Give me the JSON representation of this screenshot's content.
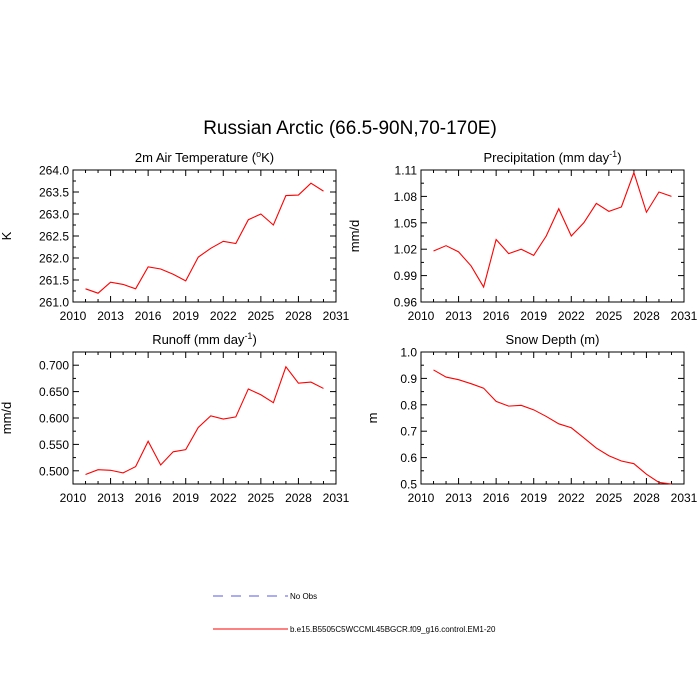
{
  "figure": {
    "title": "Russian Arctic (66.5-90N,70-170E)"
  },
  "chart_data": [
    {
      "type": "line",
      "title_main": "2m Air Temperature (",
      "title_sup": "o",
      "title_tail": "K)",
      "ylabel": "K",
      "xlim": [
        2010,
        2031
      ],
      "ylim": [
        261.0,
        264.0
      ],
      "xticks": [
        2010,
        2013,
        2016,
        2019,
        2022,
        2025,
        2028,
        2031
      ],
      "xticklabels": [
        "2010",
        "2013",
        "2016",
        "2019",
        "2022",
        "2025",
        "2028",
        "2031"
      ],
      "yticks": [
        261.0,
        261.5,
        262.0,
        262.5,
        263.0,
        263.5,
        264.0
      ],
      "yticklabels": [
        "261.0",
        "261.5",
        "262.0",
        "262.5",
        "263.0",
        "263.5",
        "264.0"
      ],
      "series": [
        {
          "name": "b.e15.B5505C5WCCML45BGCR.f09_g16.control.EM1-20",
          "color": "#ff0000",
          "x": [
            2011,
            2012,
            2013,
            2014,
            2015,
            2016,
            2017,
            2018,
            2019,
            2020,
            2021,
            2022,
            2023,
            2024,
            2025,
            2026,
            2027,
            2028,
            2029,
            2030
          ],
          "y": [
            261.3,
            261.2,
            261.45,
            261.4,
            261.3,
            261.8,
            261.75,
            261.63,
            261.48,
            262.02,
            262.22,
            262.38,
            262.33,
            262.87,
            263.0,
            262.75,
            263.42,
            263.43,
            263.7,
            263.52
          ]
        }
      ]
    },
    {
      "type": "line",
      "title_main": "Precipitation (mm day",
      "title_sup": "-1",
      "title_tail": ")",
      "ylabel": "mm/d",
      "xlim": [
        2010,
        2031
      ],
      "ylim": [
        0.96,
        1.11
      ],
      "xticks": [
        2010,
        2013,
        2016,
        2019,
        2022,
        2025,
        2028,
        2031
      ],
      "xticklabels": [
        "2010",
        "2013",
        "2016",
        "2019",
        "2022",
        "2025",
        "2028",
        "2031"
      ],
      "yticks": [
        0.96,
        0.99,
        1.02,
        1.05,
        1.08,
        1.11
      ],
      "yticklabels": [
        "0.96",
        "0.99",
        "1.02",
        "1.05",
        "1.08",
        "1.11"
      ],
      "series": [
        {
          "name": "b.e15.B5505C5WCCML45BGCR.f09_g16.control.EM1-20",
          "color": "#ff0000",
          "x": [
            2011,
            2012,
            2013,
            2014,
            2015,
            2016,
            2017,
            2018,
            2019,
            2020,
            2021,
            2022,
            2023,
            2024,
            2025,
            2026,
            2027,
            2028,
            2029,
            2030
          ],
          "y": [
            1.018,
            1.024,
            1.017,
            1.001,
            0.977,
            1.031,
            1.015,
            1.02,
            1.013,
            1.035,
            1.066,
            1.035,
            1.05,
            1.072,
            1.063,
            1.068,
            1.107,
            1.062,
            1.085,
            1.08
          ]
        }
      ]
    },
    {
      "type": "line",
      "title_main": "Runoff (mm day",
      "title_sup": "-1",
      "title_tail": ")",
      "ylabel": "mm/d",
      "xlim": [
        2010,
        2031
      ],
      "ylim": [
        0.475,
        0.725
      ],
      "xticks": [
        2010,
        2013,
        2016,
        2019,
        2022,
        2025,
        2028,
        2031
      ],
      "xticklabels": [
        "2010",
        "2013",
        "2016",
        "2019",
        "2022",
        "2025",
        "2028",
        "2031"
      ],
      "yticks": [
        0.5,
        0.55,
        0.6,
        0.65,
        0.7
      ],
      "yticklabels": [
        "0.500",
        "0.550",
        "0.600",
        "0.650",
        "0.700"
      ],
      "series": [
        {
          "name": "b.e15.B5505C5WCCML45BGCR.f09_g16.control.EM1-20",
          "color": "#ff0000",
          "x": [
            2011,
            2012,
            2013,
            2014,
            2015,
            2016,
            2017,
            2018,
            2019,
            2020,
            2021,
            2022,
            2023,
            2024,
            2025,
            2026,
            2027,
            2028,
            2029,
            2030
          ],
          "y": [
            0.493,
            0.502,
            0.501,
            0.496,
            0.508,
            0.556,
            0.511,
            0.536,
            0.54,
            0.582,
            0.604,
            0.598,
            0.602,
            0.655,
            0.644,
            0.629,
            0.697,
            0.666,
            0.668,
            0.656
          ]
        }
      ]
    },
    {
      "type": "line",
      "title_main": "Snow Depth (m)",
      "title_sup": "",
      "title_tail": "",
      "ylabel": "m",
      "xlim": [
        2010,
        2031
      ],
      "ylim": [
        0.5,
        1.0
      ],
      "xticks": [
        2010,
        2013,
        2016,
        2019,
        2022,
        2025,
        2028,
        2031
      ],
      "xticklabels": [
        "2010",
        "2013",
        "2016",
        "2019",
        "2022",
        "2025",
        "2028",
        "2031"
      ],
      "yticks": [
        0.5,
        0.6,
        0.7,
        0.8,
        0.9,
        1.0
      ],
      "yticklabels": [
        "0.5",
        "0.6",
        "0.7",
        "0.8",
        "0.9",
        "1.0"
      ],
      "series": [
        {
          "name": "b.e15.B5505C5WCCML45BGCR.f09_g16.control.EM1-20",
          "color": "#ff0000",
          "x": [
            2011,
            2012,
            2013,
            2014,
            2015,
            2016,
            2017,
            2018,
            2019,
            2020,
            2021,
            2022,
            2023,
            2024,
            2025,
            2026,
            2027,
            2028,
            2029,
            2030
          ],
          "y": [
            0.932,
            0.905,
            0.895,
            0.88,
            0.863,
            0.813,
            0.795,
            0.798,
            0.781,
            0.756,
            0.728,
            0.713,
            0.675,
            0.636,
            0.607,
            0.587,
            0.577,
            0.537,
            0.506,
            0.5
          ]
        }
      ]
    }
  ],
  "legend": {
    "items": [
      {
        "label": "No Obs",
        "style": "dashed",
        "color": "#5a5ae6"
      },
      {
        "label": "b.e15.B5505C5WCCML45BGCR.f09_g16.control.EM1-20",
        "style": "solid",
        "color": "#ff0000"
      }
    ]
  }
}
